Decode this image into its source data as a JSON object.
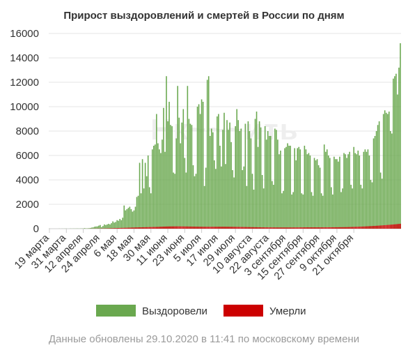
{
  "chart_data": {
    "type": "bar",
    "title": "Прирост выздоровлений и смертей в России по дням",
    "ylim": [
      0,
      16000
    ],
    "yticks": [
      0,
      2000,
      4000,
      6000,
      8000,
      10000,
      12000,
      14000,
      16000
    ],
    "xtick_labels": [
      "19 марта",
      "31 марта",
      "12 апреля",
      "24 апреля",
      "6 мая",
      "18 мая",
      "30 мая",
      "11 июня",
      "23 июня",
      "5 июля",
      "17 июля",
      "29 июля",
      "10 августа",
      "22 августа",
      "3 сентября",
      "15 сентября",
      "27 сентября",
      "9 октября",
      "21 октября"
    ],
    "grid": true,
    "legend_position": "bottom",
    "series": [
      {
        "name": "Выздоровели",
        "color": "#6aa84f",
        "values": [
          5,
          0,
          0,
          0,
          0,
          0,
          0,
          5,
          0,
          4,
          3,
          6,
          8,
          0,
          3,
          10,
          6,
          10,
          10,
          12,
          15,
          10,
          15,
          15,
          20,
          45,
          25,
          30,
          40,
          60,
          90,
          110,
          160,
          180,
          190,
          250,
          300,
          130,
          220,
          350,
          300,
          350,
          400,
          350,
          450,
          600,
          500,
          550,
          700,
          650,
          800,
          700,
          900,
          1900,
          1500,
          1600,
          1700,
          1800,
          1600,
          1400,
          1500,
          1800,
          2600,
          2700,
          5400,
          2900,
          5700,
          3300,
          5400,
          4300,
          6000,
          3400,
          2900,
          6500,
          6800,
          6900,
          9400,
          7000,
          6500,
          6200,
          7300,
          9900,
          6300,
          12500,
          8800,
          10400,
          8500,
          8400,
          4600,
          4500,
          7400,
          11700,
          9100,
          7000,
          8700,
          9800,
          5800,
          4600,
          11700,
          9000,
          8600,
          8500,
          5200,
          4300,
          4500,
          10000,
          10200,
          9400,
          10600,
          10400,
          3500,
          5000,
          12200,
          12500,
          7600,
          8200,
          7900,
          5600,
          4900,
          9200,
          9400,
          6800,
          5100,
          8100,
          9500,
          5300,
          8900,
          8100,
          8700,
          7100,
          4800,
          4200,
          8400,
          9800,
          8900,
          8000,
          8200,
          4800,
          5100,
          8600,
          3500,
          8800,
          8000,
          7400,
          4500,
          3200,
          9000,
          9600,
          6700,
          8800,
          8300,
          4400,
          3300,
          8400,
          7300,
          8000,
          7600,
          7600,
          3900,
          3600,
          8200,
          8100,
          7300,
          6100,
          6400,
          2900,
          3100,
          6600,
          6700,
          7000,
          6800,
          6800,
          2800,
          3000,
          6600,
          5600,
          6600,
          6700,
          6500,
          2900,
          2800,
          6800,
          6500,
          6100,
          6200,
          6000,
          3000,
          2700,
          5800,
          5600,
          5700,
          5200,
          5000,
          2900,
          2700,
          6900,
          6300,
          6500,
          6000,
          5800,
          3400,
          2800,
          5900,
          5700,
          5700,
          5500,
          5900,
          3000,
          3300,
          6200,
          6100,
          5800,
          6100,
          6300,
          3600,
          3300,
          6700,
          6200,
          6100,
          6400,
          6000,
          3600,
          3300,
          6300,
          6500,
          6300,
          6500,
          6000,
          4000,
          3800,
          7400,
          7600,
          8000,
          8500,
          8800,
          4600,
          4100,
          9400,
          9700,
          9500,
          9400,
          9600,
          8000,
          7800,
          12300,
          12500,
          12700,
          11000,
          13200,
          15200
        ]
      },
      {
        "name": "Умерли",
        "color": "#cc0000",
        "values": [
          0,
          0,
          0,
          0,
          0,
          0,
          0,
          0,
          0,
          0,
          0,
          0,
          0,
          0,
          0,
          0,
          0,
          0,
          0,
          0,
          0,
          0,
          0,
          1,
          1,
          1,
          2,
          2,
          4,
          5,
          6,
          7,
          9,
          11,
          12,
          13,
          15,
          17,
          19,
          21,
          24,
          27,
          30,
          34,
          37,
          41,
          45,
          48,
          52,
          56,
          60,
          64,
          68,
          72,
          75,
          79,
          83,
          86,
          90,
          93,
          97,
          100,
          104,
          107,
          110,
          113,
          116,
          119,
          122,
          125,
          128,
          131,
          134,
          137,
          140,
          143,
          146,
          150,
          155,
          160,
          165,
          170,
          174,
          178,
          182,
          184,
          186,
          188,
          189,
          190,
          190,
          190,
          189,
          188,
          187,
          185,
          184,
          182,
          180,
          178,
          176,
          174,
          172,
          170,
          168,
          166,
          164,
          162,
          160,
          158,
          157,
          156,
          155,
          155,
          155,
          155,
          156,
          157,
          158,
          159,
          160,
          160,
          160,
          160,
          160,
          159,
          158,
          157,
          156,
          155,
          154,
          152,
          150,
          148,
          146,
          144,
          142,
          140,
          138,
          136,
          134,
          132,
          130,
          128,
          126,
          124,
          122,
          120,
          118,
          116,
          114,
          112,
          110,
          109,
          108,
          107,
          106,
          105,
          104,
          103,
          102,
          101,
          100,
          100,
          100,
          100,
          100,
          100,
          100,
          100,
          100,
          100,
          100,
          101,
          102,
          103,
          104,
          105,
          106,
          107,
          108,
          109,
          110,
          110,
          110,
          110,
          110,
          110,
          110,
          110,
          110,
          110,
          110,
          110,
          110,
          110,
          111,
          112,
          113,
          114,
          115,
          116,
          117,
          118,
          119,
          120,
          121,
          122,
          123,
          125,
          127,
          130,
          133,
          136,
          140,
          144,
          148,
          152,
          156,
          160,
          165,
          170,
          175,
          180,
          186,
          192,
          198,
          204,
          210,
          217,
          224,
          231,
          238,
          246,
          254,
          262,
          270,
          279,
          288,
          297,
          306,
          316,
          326,
          336,
          346,
          357,
          368,
          379,
          390,
          402,
          414,
          426,
          438,
          450
        ]
      }
    ],
    "watermark": "Нк~~~ить"
  },
  "footer": "Данные обновлены 29.10.2020 в 11:41 по московскому времени"
}
